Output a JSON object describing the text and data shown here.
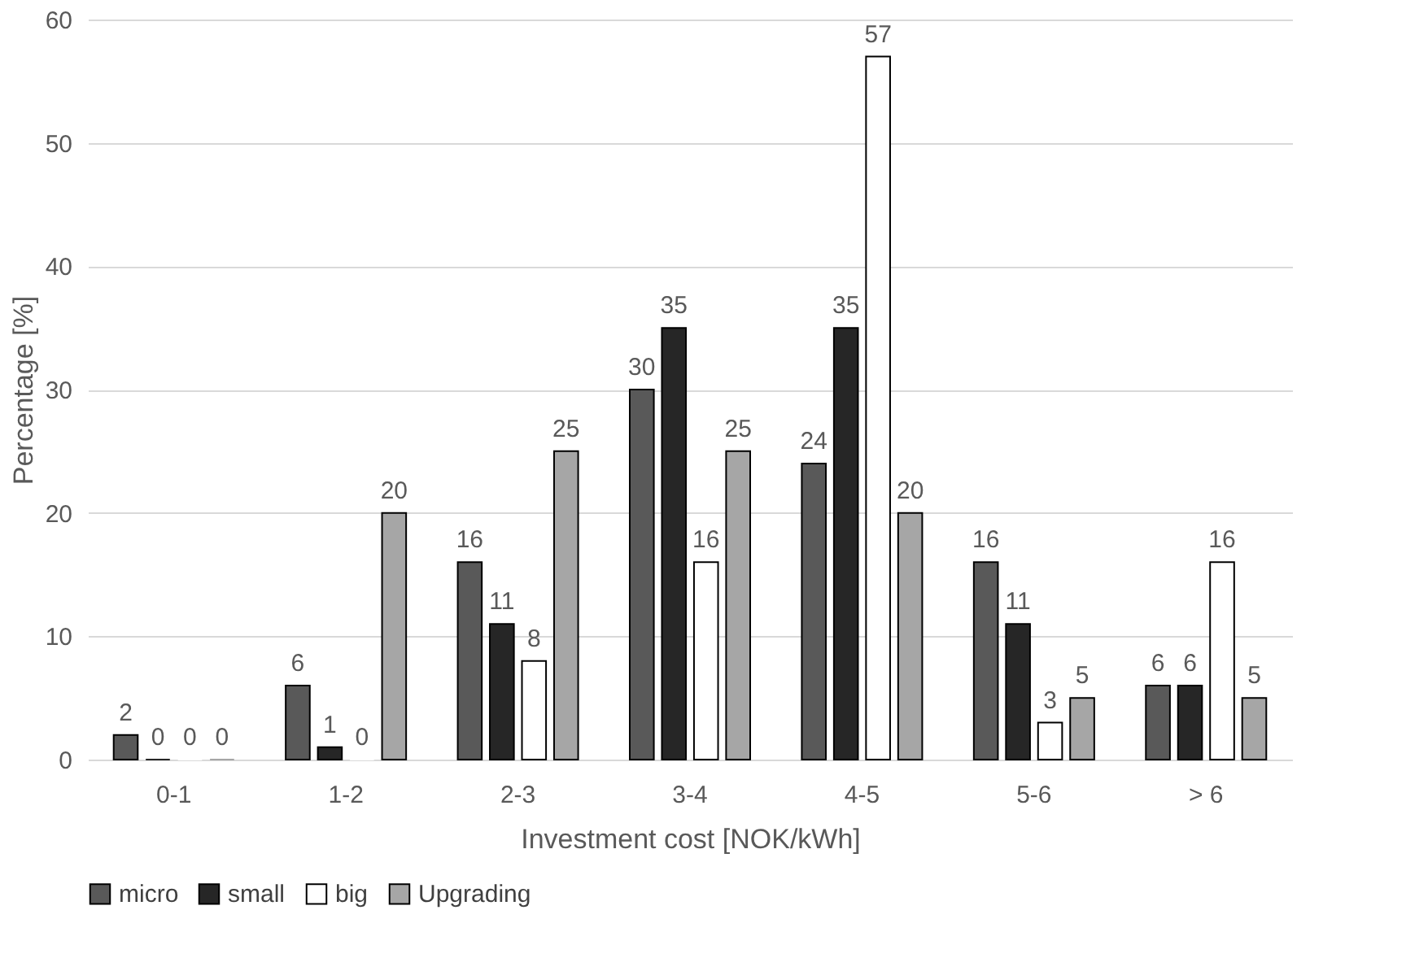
{
  "chart_data": {
    "type": "bar",
    "xlabel": "Investment cost [NOK/kWh]",
    "ylabel": "Percentage [%]",
    "categories": [
      "0-1",
      "1-2",
      "2-3",
      "3-4",
      "4-5",
      "5-6",
      "> 6"
    ],
    "series": [
      {
        "name": "micro",
        "color": "#595959",
        "values": [
          2,
          6,
          16,
          30,
          24,
          16,
          6
        ]
      },
      {
        "name": "small",
        "color": "#262626",
        "values": [
          0,
          1,
          11,
          35,
          35,
          11,
          6
        ]
      },
      {
        "name": "big",
        "color": "#ffffff",
        "values": [
          0,
          0,
          8,
          16,
          57,
          3,
          16
        ]
      },
      {
        "name": "Upgrading",
        "color": "#a6a6a6",
        "values": [
          0,
          20,
          25,
          25,
          20,
          5,
          5
        ]
      }
    ],
    "ylim": [
      0,
      60
    ],
    "yticks": [
      0,
      10,
      20,
      30,
      40,
      50,
      60
    ],
    "grid": "y",
    "legend": "bottom",
    "data_labels": true
  }
}
